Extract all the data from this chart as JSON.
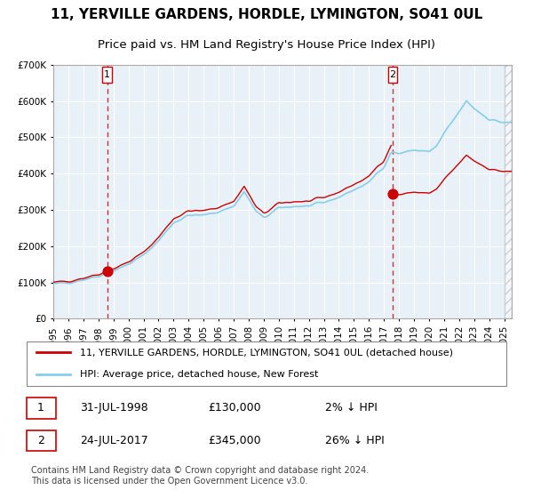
{
  "title": "11, YERVILLE GARDENS, HORDLE, LYMINGTON, SO41 0UL",
  "subtitle": "Price paid vs. HM Land Registry's House Price Index (HPI)",
  "legend_line1": "11, YERVILLE GARDENS, HORDLE, LYMINGTON, SO41 0UL (detached house)",
  "legend_line2": "HPI: Average price, detached house, New Forest",
  "annotation1_label": "1",
  "annotation1_date": "31-JUL-1998",
  "annotation1_price": "£130,000",
  "annotation1_hpi": "2% ↓ HPI",
  "annotation2_label": "2",
  "annotation2_date": "24-JUL-2017",
  "annotation2_price": "£345,000",
  "annotation2_hpi": "26% ↓ HPI",
  "footer": "Contains HM Land Registry data © Crown copyright and database right 2024.\nThis data is licensed under the Open Government Licence v3.0.",
  "sale1_year": 1998.58,
  "sale1_price": 130000,
  "sale2_year": 2017.56,
  "sale2_price": 345000,
  "hpi_base_1995": 95000,
  "line_color_red": "#cc0000",
  "line_color_blue": "#87CEEB",
  "bg_color": "#dce9f5",
  "plot_bg": "#e8f0f8",
  "grid_color": "#ffffff",
  "dashed_line_color": "#cc0000",
  "ylim_max": 700000,
  "ylim_min": 0,
  "xlim_min": 1995,
  "xlim_max": 2025.5
}
